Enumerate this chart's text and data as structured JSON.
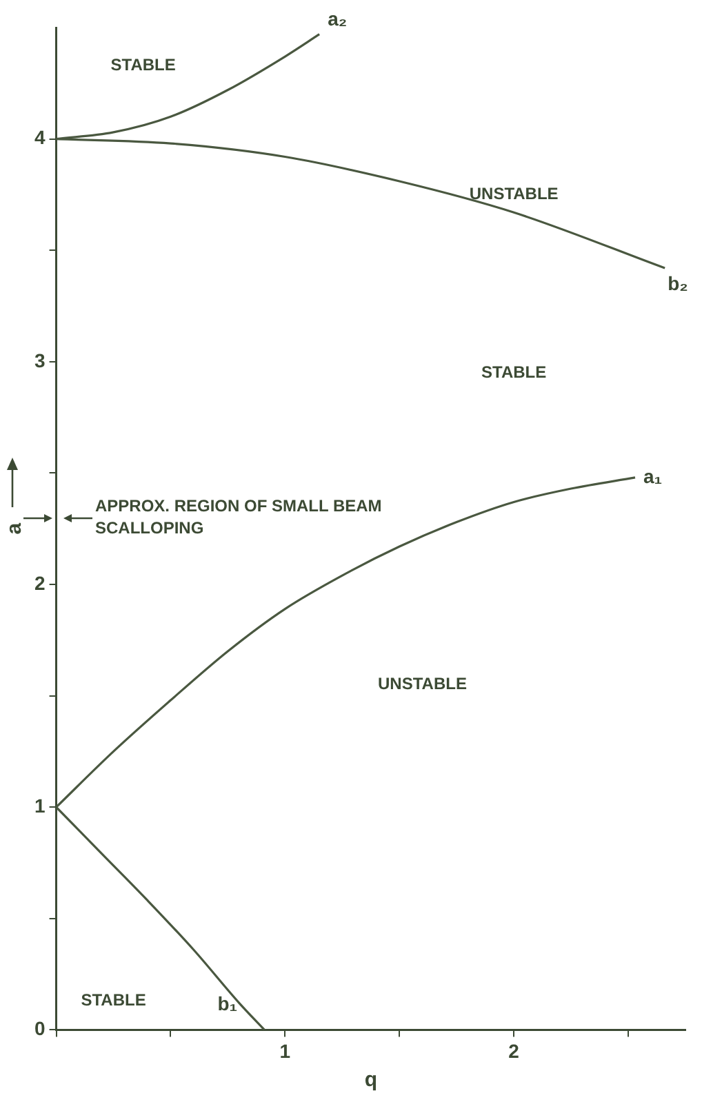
{
  "chart_data": {
    "type": "line",
    "xlabel": "q",
    "ylabel": "a",
    "xlim": [
      0,
      2.75
    ],
    "ylim": [
      0,
      4.5
    ],
    "xticks": [
      {
        "value": 0,
        "label": null
      },
      {
        "value": 0.5,
        "label": null
      },
      1,
      {
        "value": 1.5,
        "label": null
      },
      2,
      {
        "value": 2.5,
        "label": null
      }
    ],
    "yticks": [
      0,
      {
        "value": 0.5,
        "label": null
      },
      1,
      {
        "value": 1.5,
        "label": null
      },
      2,
      {
        "value": 2.5,
        "label": null
      },
      3,
      {
        "value": 3.5,
        "label": null
      },
      4
    ],
    "grid": false,
    "legend": false,
    "marker": "none",
    "line_style": "solid",
    "series": [
      {
        "name": "a₁",
        "color": "#4a5840",
        "x": [
          0,
          0.25,
          0.5,
          0.75,
          1,
          1.25,
          1.5,
          1.75,
          2,
          2.25,
          2.53
        ],
        "values": [
          1,
          1.25,
          1.48,
          1.7,
          1.89,
          2.04,
          2.17,
          2.28,
          2.37,
          2.43,
          2.48
        ]
      },
      {
        "name": "b₁",
        "color": "#4a5840",
        "x": [
          0,
          0.2,
          0.4,
          0.6,
          0.8,
          0.91
        ],
        "values": [
          1,
          0.79,
          0.58,
          0.36,
          0.12,
          0
        ]
      },
      {
        "name": "a₂",
        "color": "#4a5840",
        "x": [
          0,
          0.25,
          0.5,
          0.75,
          1,
          1.15
        ],
        "values": [
          4,
          4.03,
          4.1,
          4.22,
          4.37,
          4.47
        ]
      },
      {
        "name": "b₂",
        "color": "#4a5840",
        "x": [
          0,
          0.5,
          1,
          1.5,
          2,
          2.66
        ],
        "values": [
          4,
          3.98,
          3.92,
          3.81,
          3.67,
          3.42
        ]
      }
    ],
    "annotations": [
      "STABLE",
      "UNSTABLE",
      "STABLE",
      "UNSTABLE",
      "STABLE",
      "APPROX. REGION OF SMALL BEAM SCALLOPING"
    ]
  }
}
